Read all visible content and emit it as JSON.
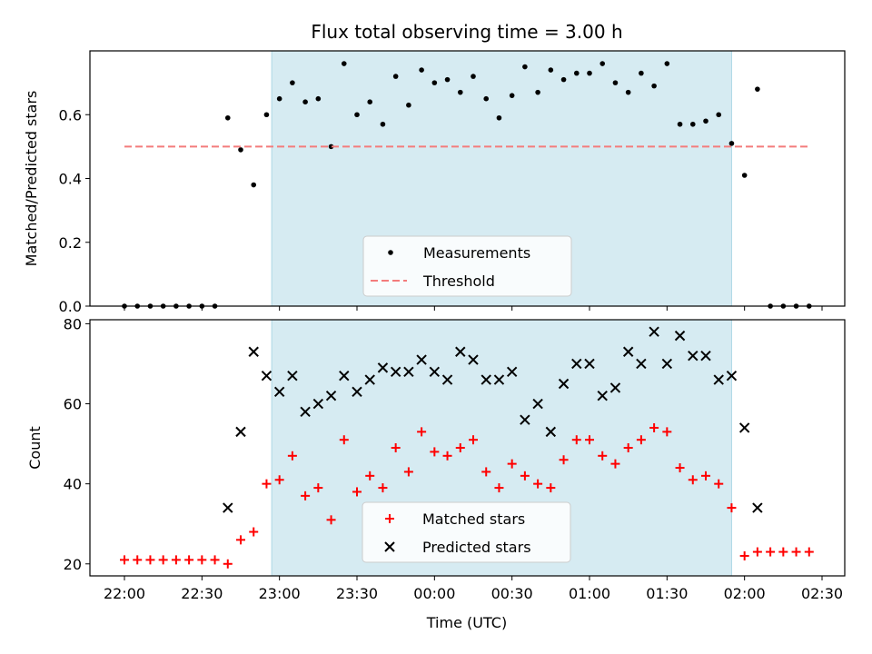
{
  "title": "Flux total observing time = 3.00 h",
  "chart_data": [
    {
      "type": "scatter",
      "ylabel": "Matched/Predicted stars",
      "ylim": [
        0,
        0.8
      ],
      "yticks": [
        0.0,
        0.2,
        0.4,
        0.6
      ],
      "ytick_labels": [
        "0.0",
        "0.2",
        "0.4",
        "0.6"
      ],
      "observing_window": [
        "22:57",
        "01:55"
      ],
      "legend": {
        "placement": "lower center",
        "entries": [
          "Measurements",
          "Threshold"
        ]
      },
      "series": [
        {
          "name": "Measurements",
          "color": "#000000",
          "marker": "dot",
          "x": [
            "22:00",
            "22:05",
            "22:10",
            "22:15",
            "22:20",
            "22:25",
            "22:30",
            "22:35",
            "22:40",
            "22:45",
            "22:50",
            "22:55",
            "23:00",
            "23:05",
            "23:10",
            "23:15",
            "23:20",
            "23:25",
            "23:30",
            "23:35",
            "23:40",
            "23:45",
            "23:50",
            "23:55",
            "00:00",
            "00:05",
            "00:10",
            "00:15",
            "00:20",
            "00:25",
            "00:30",
            "00:35",
            "00:40",
            "00:45",
            "00:50",
            "00:55",
            "01:00",
            "01:05",
            "01:10",
            "01:15",
            "01:20",
            "01:25",
            "01:30",
            "01:35",
            "01:40",
            "01:45",
            "01:50",
            "01:55",
            "02:00",
            "02:05",
            "02:10",
            "02:15",
            "02:20",
            "02:25"
          ],
          "y": [
            0,
            0,
            0,
            0,
            0,
            0,
            0,
            0,
            0.59,
            0.49,
            0.38,
            0.6,
            0.65,
            0.7,
            0.64,
            0.65,
            0.5,
            0.76,
            0.6,
            0.64,
            0.57,
            0.72,
            0.63,
            0.74,
            0.7,
            0.71,
            0.67,
            0.72,
            0.65,
            0.59,
            0.66,
            0.75,
            0.67,
            0.74,
            0.71,
            0.73,
            0.73,
            0.76,
            0.7,
            0.67,
            0.73,
            0.69,
            0.76,
            0.57,
            0.57,
            0.58,
            0.6,
            0.51,
            0.41,
            0.68,
            0,
            0,
            0,
            0
          ]
        },
        {
          "name": "Threshold",
          "color": "#f47c7c",
          "style": "dashed",
          "x": [
            "22:00",
            "02:25"
          ],
          "y": [
            0.5,
            0.5
          ]
        }
      ]
    },
    {
      "type": "scatter",
      "ylabel": "Count",
      "xlabel": "Time (UTC)",
      "ylim": [
        17,
        81
      ],
      "yticks": [
        20,
        40,
        60,
        80
      ],
      "ytick_labels": [
        "20",
        "40",
        "60",
        "80"
      ],
      "xticks": [
        "22:00",
        "22:30",
        "23:00",
        "23:30",
        "00:00",
        "00:30",
        "01:00",
        "01:30",
        "02:00",
        "02:30"
      ],
      "observing_window": [
        "22:57",
        "01:55"
      ],
      "legend": {
        "placement": "lower center",
        "entries": [
          "Matched stars",
          "Predicted stars"
        ]
      },
      "series": [
        {
          "name": "Matched stars",
          "color": "#ff0000",
          "marker": "plus",
          "x": [
            "22:00",
            "22:05",
            "22:10",
            "22:15",
            "22:20",
            "22:25",
            "22:30",
            "22:35",
            "22:40",
            "22:45",
            "22:50",
            "22:55",
            "23:00",
            "23:05",
            "23:10",
            "23:15",
            "23:20",
            "23:25",
            "23:30",
            "23:35",
            "23:40",
            "23:45",
            "23:50",
            "23:55",
            "00:00",
            "00:05",
            "00:10",
            "00:15",
            "00:20",
            "00:25",
            "00:30",
            "00:35",
            "00:40",
            "00:45",
            "00:50",
            "00:55",
            "01:00",
            "01:05",
            "01:10",
            "01:15",
            "01:20",
            "01:25",
            "01:30",
            "01:35",
            "01:40",
            "01:45",
            "01:50",
            "01:55",
            "02:00",
            "02:05",
            "02:10",
            "02:15",
            "02:20",
            "02:25"
          ],
          "y": [
            21,
            21,
            21,
            21,
            21,
            21,
            21,
            21,
            20,
            26,
            28,
            40,
            41,
            47,
            37,
            39,
            31,
            51,
            38,
            42,
            39,
            49,
            43,
            53,
            48,
            47,
            49,
            51,
            43,
            39,
            45,
            42,
            40,
            39,
            46,
            51,
            51,
            47,
            45,
            49,
            51,
            54,
            53,
            44,
            41,
            42,
            40,
            34,
            22,
            23,
            23,
            23,
            23,
            23
          ]
        },
        {
          "name": "Predicted stars",
          "color": "#000000",
          "marker": "x",
          "x": [
            "22:40",
            "22:45",
            "22:50",
            "22:55",
            "23:00",
            "23:05",
            "23:10",
            "23:15",
            "23:20",
            "23:25",
            "23:30",
            "23:35",
            "23:40",
            "23:45",
            "23:50",
            "23:55",
            "00:00",
            "00:05",
            "00:10",
            "00:15",
            "00:20",
            "00:25",
            "00:30",
            "00:35",
            "00:40",
            "00:45",
            "00:50",
            "00:55",
            "01:00",
            "01:05",
            "01:10",
            "01:15",
            "01:20",
            "01:25",
            "01:30",
            "01:35",
            "01:40",
            "01:45",
            "01:50",
            "01:55",
            "02:00",
            "02:05"
          ],
          "y": [
            34,
            53,
            73,
            67,
            63,
            67,
            58,
            60,
            62,
            67,
            63,
            66,
            69,
            68,
            68,
            71,
            68,
            66,
            73,
            71,
            66,
            66,
            68,
            56,
            60,
            53,
            65,
            70,
            70,
            62,
            64,
            73,
            70,
            78,
            70,
            77,
            72,
            72,
            66,
            67,
            54,
            34
          ]
        }
      ]
    }
  ]
}
